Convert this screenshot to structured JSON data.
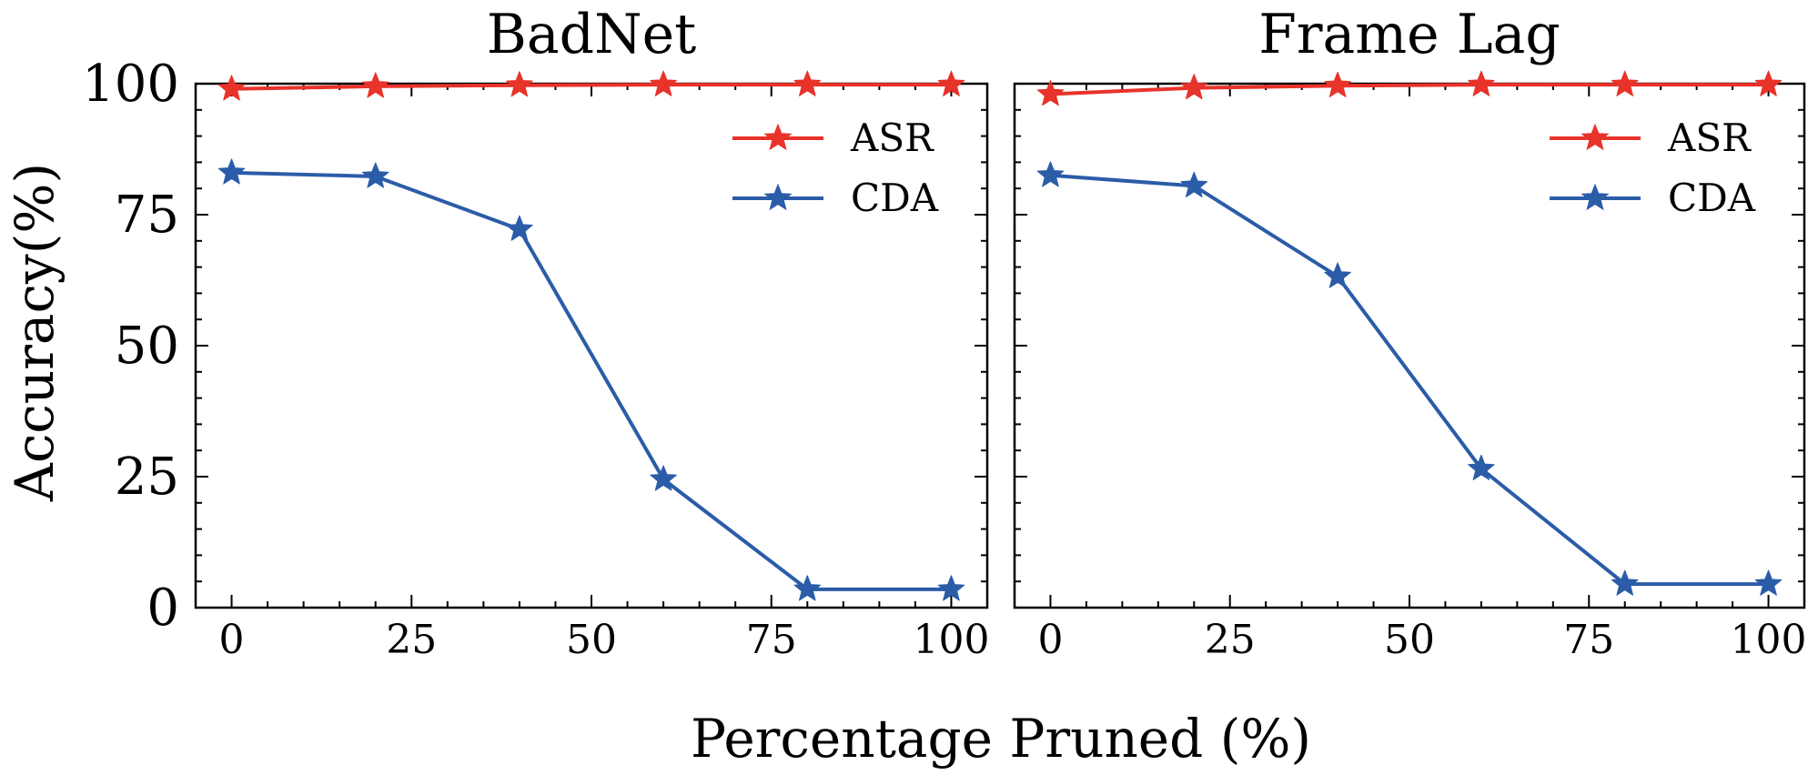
{
  "chart_data": {
    "type": "line",
    "xlabel": "Percentage Pruned (%)",
    "ylabel": "Accuracy(%)",
    "xlim": [
      -5,
      105
    ],
    "ylim": [
      0,
      100
    ],
    "xticks": [
      0,
      25,
      50,
      75,
      100
    ],
    "yticks": [
      0,
      25,
      50,
      75,
      100
    ],
    "xtick_labels": [
      "0",
      "25",
      "50",
      "75",
      "100"
    ],
    "ytick_labels": [
      "0",
      "25",
      "50",
      "75",
      "100"
    ],
    "legend_position": "top-right",
    "colors": {
      "ASR": "#e8332a",
      "CDA": "#2b5ca8"
    },
    "marker": "star",
    "panels": [
      {
        "title": "BadNet",
        "x": [
          0,
          20,
          40,
          60,
          80,
          100
        ],
        "series": [
          {
            "name": "ASR",
            "values": [
              99,
              99.5,
              99.7,
              99.8,
              99.8,
              99.8
            ]
          },
          {
            "name": "CDA",
            "values": [
              83,
              82.3,
              72.2,
              24.5,
              3.5,
              3.5
            ]
          }
        ]
      },
      {
        "title": "Frame Lag",
        "x": [
          0,
          20,
          40,
          60,
          80,
          100
        ],
        "series": [
          {
            "name": "ASR",
            "values": [
              98,
              99.2,
              99.6,
              99.8,
              99.8,
              99.8
            ]
          },
          {
            "name": "CDA",
            "values": [
              82.5,
              80.5,
              63.2,
              26.5,
              4.5,
              4.5
            ]
          }
        ]
      }
    ]
  }
}
